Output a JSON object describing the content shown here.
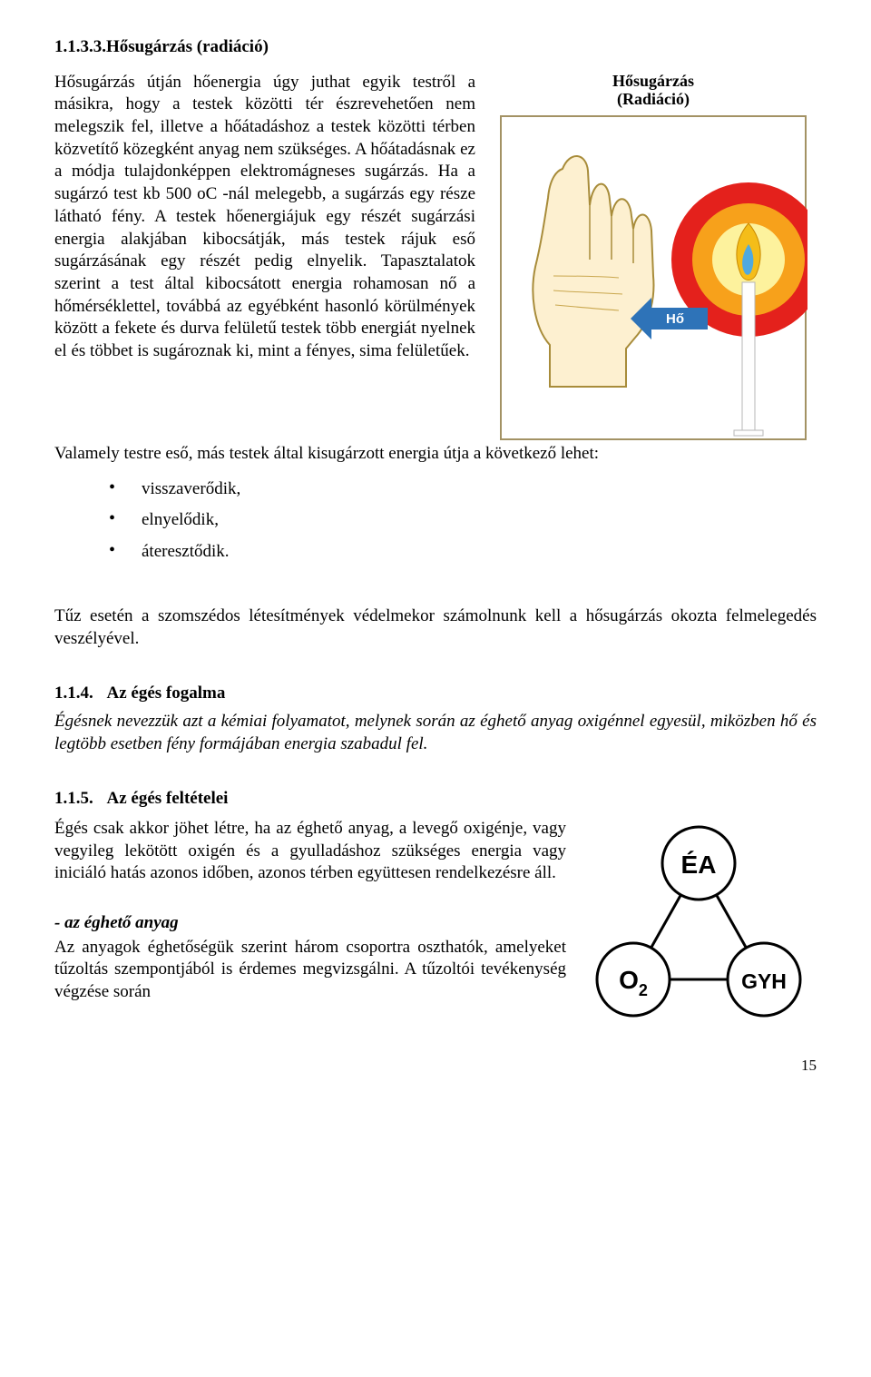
{
  "page": {
    "number": "15"
  },
  "section_1_1_3_3": {
    "heading_number": "1.1.3.3.",
    "heading_title": "Hősugárzás (radiáció)",
    "figure_title_line1": "Hősugárzás",
    "figure_title_line2": "(Radiáció)",
    "arrow_label": "Hő",
    "body_left": "Hősugárzás útján hőenergia úgy juthat egyik testről a másikra, hogy a testek közötti tér észrevehetően nem melegszik fel, illetve a hőátadáshoz a testek közötti térben közvetítő közegként anyag nem szükséges. A hőátadásnak ez a módja tulajdonképpen elektromágneses sugárzás. Ha a sugárzó test kb 500 oC -nál melegebb, a sugárzás egy része látható fény. A testek hőenergiájuk egy részét sugárzási energia alakjában kibocsátják, más testek rájuk eső sugárzásának egy részét pedig elnyelik. Tapasztalatok szerint a test által kibocsátott energia rohamosan nő a hőmérséklettel, továbbá az egyébként hasonló körülmények között a fekete és durva felületű testek több energiát nyelnek el és többet is sugároznak ki, mint a fényes, sima felületűek.",
    "body_full": "Valamely testre eső, más testek által kisugárzott energia útja a következő lehet:",
    "bullet1": "visszaverődik,",
    "bullet2": "elnyelődik,",
    "bullet3": "áteresztődik.",
    "after": "Tűz esetén a szomszédos létesítmények védelmekor számolnunk kell a hősugárzás okozta felmelegedés veszélyével.",
    "radiation_fig": {
      "bg": "#ffffff",
      "frame": "#a39264",
      "hand_fill": "#fdf0d0",
      "hand_outline": "#a88c3a",
      "ring_outer": "#e4211c",
      "ring_mid": "#f7a11b",
      "ring_inner": "#fdf29d",
      "flame_outer": "#f4bd19",
      "flame_inner": "#4fa9df",
      "candle_body": "#fefefe",
      "candle_outline": "#b7b7b7",
      "arrow_color": "#2e73b8",
      "arrow_text": "#ffffff"
    }
  },
  "section_1_1_4": {
    "heading_number": "1.1.4.",
    "heading_title": "Az égés fogalma",
    "body": "Égésnek nevezzük azt a kémiai folyamatot, melynek során az éghető anyag oxigénnel egyesül, miközben hő és legtöbb esetben fény formájában energia szabadul fel."
  },
  "section_1_1_5": {
    "heading_number": "1.1.5.",
    "heading_title": "Az égés feltételei",
    "body_left": "Égés csak akkor jöhet létre, ha az éghető anyag, a levegő oxigénje, vagy vegyileg lekötött oxigén és a gyulladáshoz szükséges energia vagy iniciáló hatás azonos időben, azonos térben együttesen rendelkezésre áll.",
    "sub_heading": "- az éghető anyag",
    "body2_left": "Az anyagok éghetőségük szerint három csoportra oszthatók, amelyeket tűzoltás szempontjából is érdemes megvizsgálni. A tűzoltói tevékenység végzése során",
    "triangle": {
      "node_top": "ÉA",
      "node_left": "O",
      "node_left_sub": "2",
      "node_right": "GYH",
      "circle_stroke": "#000000",
      "circle_fill": "#ffffff",
      "line_color": "#000000",
      "text_color": "#000000"
    }
  }
}
